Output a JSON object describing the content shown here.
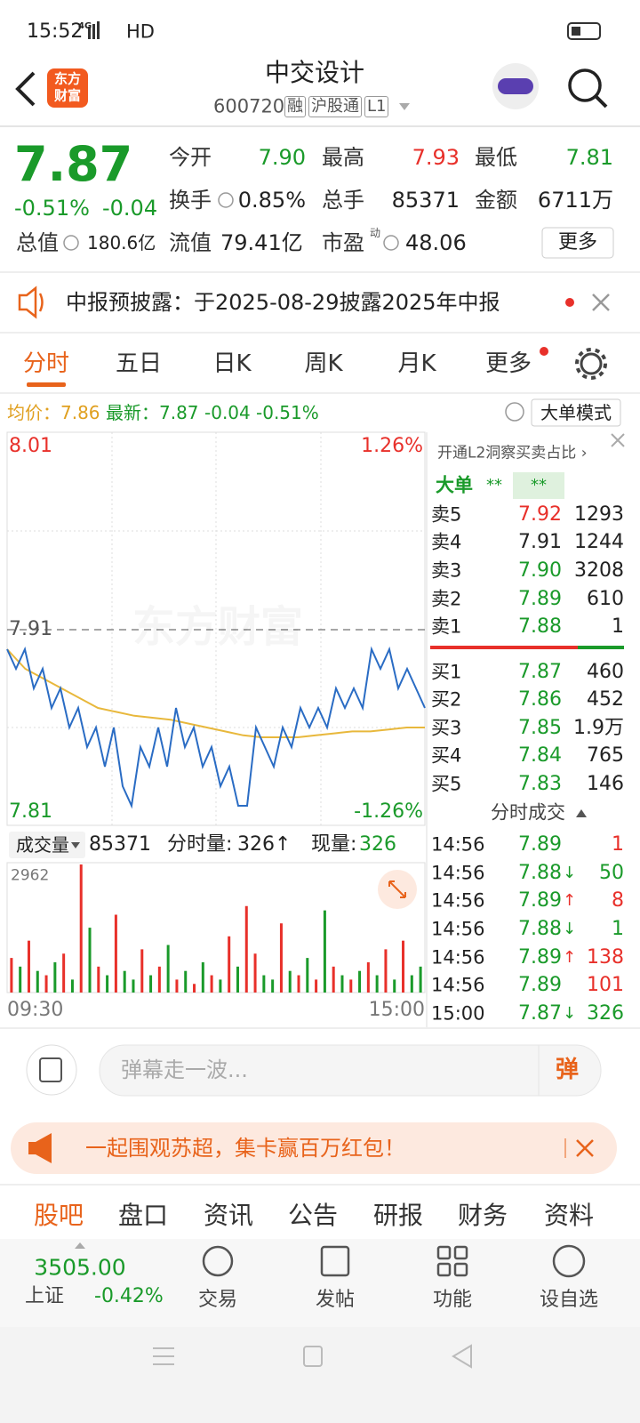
{
  "status_bar": {
    "time": "15:52",
    "network": "4G",
    "signal_label": "HD"
  },
  "header": {
    "logo": [
      "东方",
      "财富"
    ],
    "title": "中交设计",
    "code": "600720",
    "badges": [
      "融",
      "沪股通",
      "L1"
    ]
  },
  "quote": {
    "price": "7.87",
    "change_pct": "-0.51%",
    "change": "-0.04",
    "fields": [
      {
        "label": "今开",
        "value": "7.90",
        "color": "#1a9a2a"
      },
      {
        "label": "最高",
        "value": "7.93",
        "color": "#e8302a"
      },
      {
        "label": "最低",
        "value": "7.81",
        "color": "#1a9a2a"
      },
      {
        "label": "换手",
        "value": "0.85%",
        "color": "#222222"
      },
      {
        "label": "总手",
        "value": "85371",
        "color": "#222222"
      },
      {
        "label": "金额",
        "value": "6711万",
        "color": "#222222"
      },
      {
        "label": "总值",
        "value": "180.6亿",
        "color": "#222222"
      },
      {
        "label": "流值",
        "value": "79.41亿",
        "color": "#222222"
      },
      {
        "label": "市盈",
        "sup": "动",
        "value": "48.06",
        "color": "#222222"
      }
    ],
    "more": "更多"
  },
  "notice": {
    "text": "中报预披露：于2025-08-29披露2025年中报"
  },
  "tabs": {
    "items": [
      "分时",
      "五日",
      "日K",
      "周K",
      "月K",
      "更多"
    ],
    "active": 0
  },
  "info": {
    "avg_label": "均价：",
    "avg": "7.86",
    "last_label": "最新：",
    "last": "7.87",
    "change": "-0.04",
    "change_pct": "-0.51%",
    "mode": "大单模式"
  },
  "intraday": {
    "ylim": [
      7.81,
      8.01
    ],
    "prev_close": 7.91,
    "pct_labels": [
      "1.26%",
      "-1.26%"
    ],
    "watermark": "东方财富",
    "price_color": "#2a6cc4",
    "avg_color": "#e8b83c",
    "price": [
      7.9,
      7.89,
      7.9,
      7.88,
      7.89,
      7.87,
      7.88,
      7.86,
      7.87,
      7.85,
      7.86,
      7.84,
      7.86,
      7.83,
      7.82,
      7.85,
      7.84,
      7.86,
      7.84,
      7.87,
      7.85,
      7.86,
      7.84,
      7.85,
      7.83,
      7.84,
      7.82,
      7.82,
      7.86,
      7.85,
      7.84,
      7.86,
      7.85,
      7.87,
      7.86,
      7.87,
      7.86,
      7.88,
      7.87,
      7.88,
      7.87,
      7.9,
      7.89,
      7.9,
      7.88,
      7.89,
      7.88,
      7.87
    ],
    "avg": [
      7.9,
      7.89,
      7.885,
      7.88,
      7.875,
      7.87,
      7.868,
      7.866,
      7.865,
      7.864,
      7.862,
      7.86,
      7.858,
      7.856,
      7.855,
      7.855,
      7.855,
      7.856,
      7.857,
      7.858,
      7.858,
      7.859,
      7.86,
      7.86
    ],
    "volume_ylim": [
      0,
      2962
    ],
    "up_color": "#e8302a",
    "down_color": "#1a9a2a",
    "volume": [
      800,
      600,
      1200,
      500,
      400,
      700,
      900,
      300,
      2962,
      1500,
      600,
      400,
      1800,
      500,
      300,
      1000,
      400,
      600,
      1100,
      300,
      500,
      200,
      700,
      400,
      300,
      1300,
      600,
      2000,
      900,
      400,
      300,
      1600,
      500,
      400,
      800,
      300,
      1900,
      600,
      400,
      300,
      500,
      700,
      400,
      1000,
      300,
      1200,
      400,
      600
    ],
    "time_labels": [
      "09:30",
      "15:00"
    ]
  },
  "volume_bar": {
    "label": "成交量",
    "total": "85371",
    "minute_label": "分时量:",
    "minute": "326↑",
    "now_label": "现量:",
    "now": "326"
  },
  "side": {
    "promo": "开通L2洞察买卖占比 ›",
    "big_label": "大单",
    "big_a": "**",
    "big_b": "**",
    "sell": [
      {
        "label": "卖5",
        "price": "7.92",
        "vol": "1293",
        "color": "#e8302a"
      },
      {
        "label": "卖4",
        "price": "7.91",
        "vol": "1244",
        "color": "#222222"
      },
      {
        "label": "卖3",
        "price": "7.90",
        "vol": "3208",
        "color": "#1a9a2a"
      },
      {
        "label": "卖2",
        "price": "7.89",
        "vol": "610",
        "color": "#1a9a2a"
      },
      {
        "label": "卖1",
        "price": "7.88",
        "vol": "1",
        "color": "#1a9a2a"
      }
    ],
    "buy": [
      {
        "label": "买1",
        "price": "7.87",
        "vol": "460",
        "color": "#1a9a2a"
      },
      {
        "label": "买2",
        "price": "7.86",
        "vol": "452",
        "color": "#1a9a2a"
      },
      {
        "label": "买3",
        "price": "7.85",
        "vol": "1.9万",
        "color": "#1a9a2a"
      },
      {
        "label": "买4",
        "price": "7.84",
        "vol": "765",
        "color": "#1a9a2a"
      },
      {
        "label": "买5",
        "price": "7.83",
        "vol": "146",
        "color": "#1a9a2a"
      }
    ],
    "trades_title": "分时成交",
    "trades": [
      {
        "time": "14:56",
        "price": "7.89",
        "vol": "1",
        "vol_color": "#e8302a"
      },
      {
        "time": "14:56",
        "price": "7.88",
        "dir": "↓",
        "dir_color": "#1a9a2a",
        "vol": "50",
        "vol_color": "#1a9a2a"
      },
      {
        "time": "14:56",
        "price": "7.89",
        "dir": "↑",
        "dir_color": "#e8302a",
        "vol": "8",
        "vol_color": "#e8302a"
      },
      {
        "time": "14:56",
        "price": "7.88",
        "dir": "↓",
        "dir_color": "#1a9a2a",
        "vol": "1",
        "vol_color": "#1a9a2a"
      },
      {
        "time": "14:56",
        "price": "7.89",
        "dir": "↑",
        "dir_color": "#e8302a",
        "vol": "138",
        "vol_color": "#e8302a"
      },
      {
        "time": "14:56",
        "price": "7.89",
        "vol": "101",
        "vol_color": "#e8302a"
      },
      {
        "time": "15:00",
        "price": "7.87",
        "dir": "↓",
        "dir_color": "#1a9a2a",
        "vol": "326",
        "vol_color": "#1a9a2a"
      }
    ]
  },
  "comment": {
    "placeholder": "弹幕走一波...",
    "send": "弹"
  },
  "banner": {
    "text": "一起围观苏超，集卡赢百万红包！"
  },
  "bottom_tabs": {
    "items": [
      "股吧",
      "盘口",
      "资讯",
      "公告",
      "研报",
      "财务",
      "资料"
    ],
    "active": 0
  },
  "nav": {
    "index_value": "3505.00",
    "index_name": "上证",
    "index_change": "-0.42%",
    "items": [
      "交易",
      "发帖",
      "功能",
      "设自选"
    ]
  }
}
